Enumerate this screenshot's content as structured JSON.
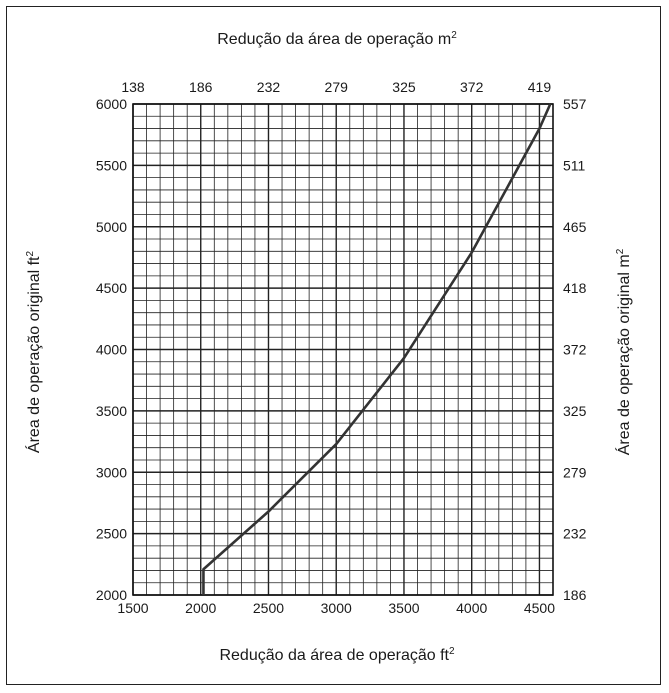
{
  "chart_data": {
    "type": "line",
    "title": "",
    "x_bottom": {
      "label": "Redução da área de operação ft",
      "label_sup": "2",
      "range": [
        1500,
        4600
      ],
      "ticks": [
        1500,
        2000,
        2500,
        3000,
        3500,
        4000,
        4500
      ]
    },
    "x_top": {
      "label": "Redução da área de operação m",
      "label_sup": "2",
      "tick_labels": [
        "138",
        "186",
        "232",
        "279",
        "325",
        "372",
        "419"
      ]
    },
    "y_left": {
      "label": "Área de operação original ft",
      "label_sup": "2",
      "range": [
        2000,
        6000
      ],
      "ticks": [
        2000,
        2500,
        3000,
        3500,
        4000,
        4500,
        5000,
        5500,
        6000
      ]
    },
    "y_right": {
      "label": "Área de operação original m",
      "label_sup": "2",
      "tick_labels": [
        "186",
        "232",
        "279",
        "325",
        "372",
        "418",
        "465",
        "511",
        "557"
      ]
    },
    "grid": true,
    "series": [
      {
        "x": [
          2020,
          2020,
          2500,
          3000,
          3500,
          4000,
          4500,
          4580
        ],
        "y": [
          2000,
          2210,
          2680,
          3230,
          3930,
          4790,
          5800,
          6000
        ]
      }
    ]
  }
}
